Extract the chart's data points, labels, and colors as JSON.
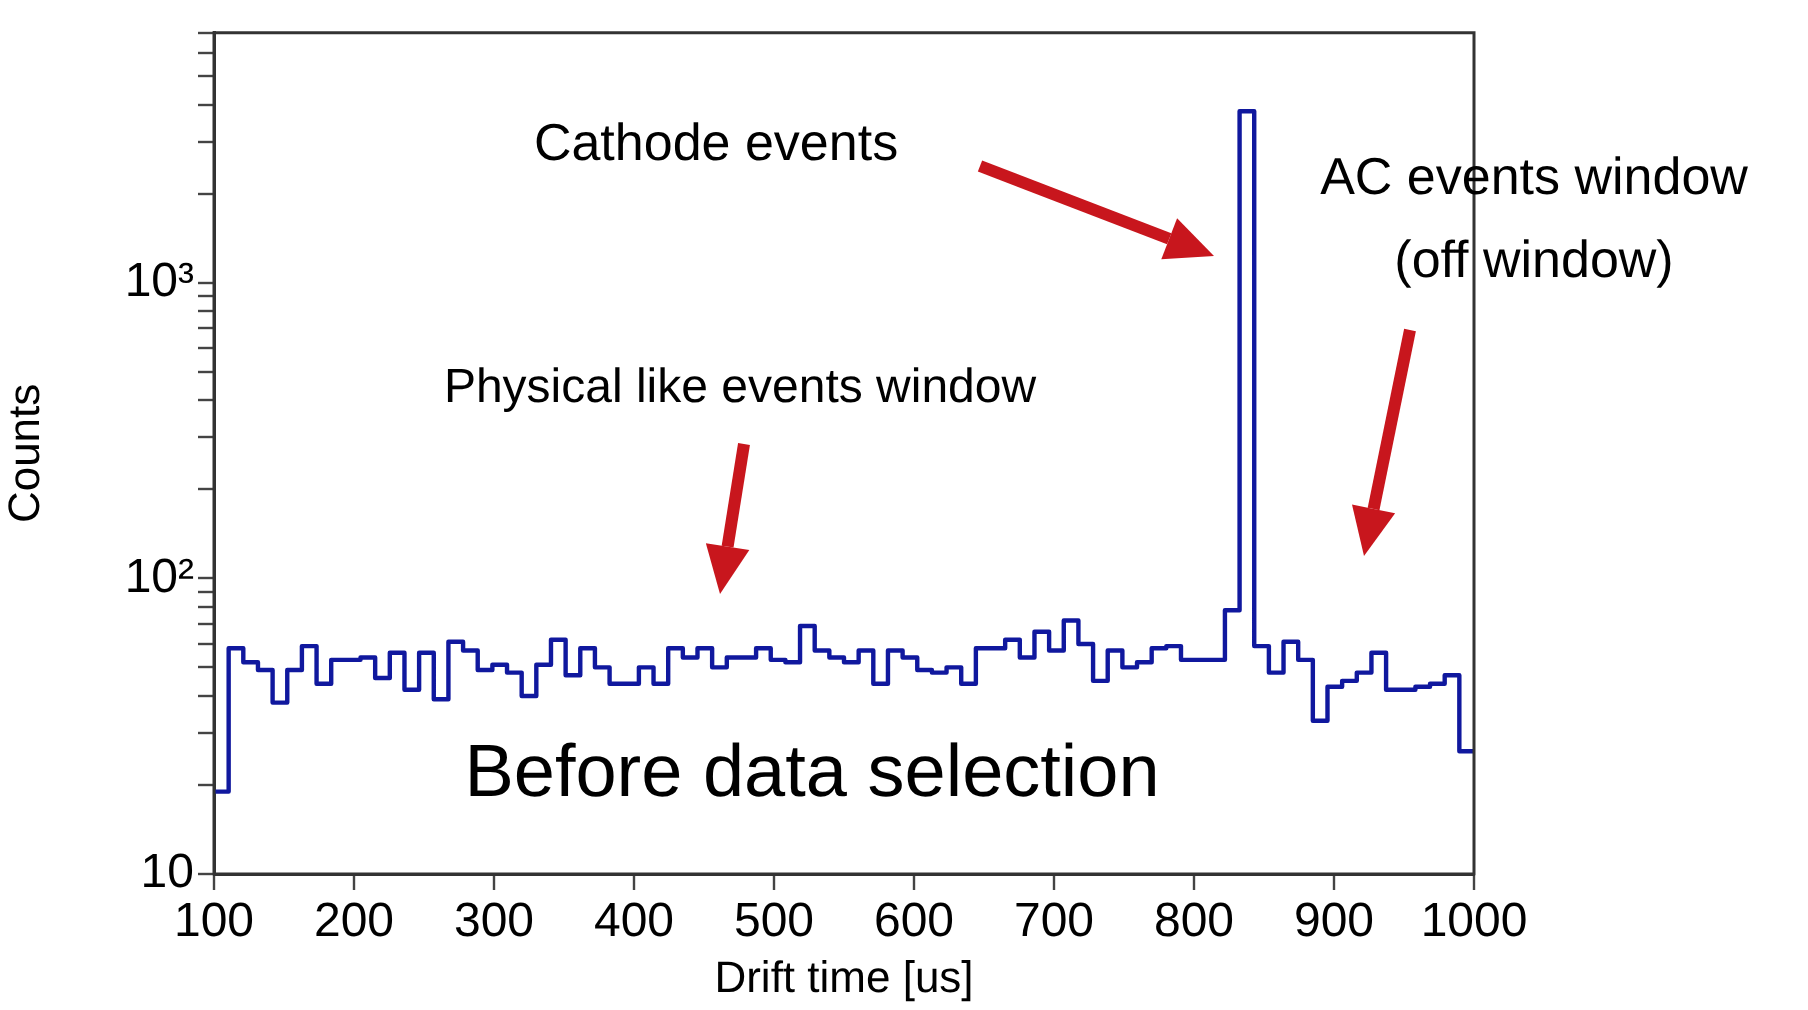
{
  "chart_data": {
    "type": "histogram",
    "xlabel": "Drift time [us]",
    "ylabel": "Counts",
    "bins": [
      100,
      110.47,
      120.93,
      131.4,
      141.86,
      152.33,
      162.79,
      173.26,
      183.72,
      194.19,
      204.65,
      215.12,
      225.58,
      236.05,
      246.51,
      256.98,
      267.44,
      277.91,
      288.37,
      298.84,
      309.3,
      319.77,
      330.23,
      340.7,
      351.16,
      361.63,
      372.09,
      382.56,
      393.02,
      403.49,
      413.95,
      424.42,
      434.88,
      445.35,
      455.81,
      466.28,
      476.74,
      487.21,
      497.67,
      508.14,
      518.6,
      529.07,
      539.53,
      550,
      560.47,
      570.93,
      581.4,
      591.86,
      602.33,
      612.79,
      623.26,
      633.72,
      644.19,
      654.65,
      665.12,
      675.58,
      686.05,
      696.51,
      706.98,
      717.44,
      727.91,
      738.37,
      748.84,
      759.3,
      769.77,
      780.23,
      790.7,
      801.16,
      811.63,
      822.09,
      832.56,
      843.02,
      853.49,
      863.95,
      874.42,
      884.88,
      895.35,
      905.81,
      916.28,
      926.74,
      937.21,
      947.67,
      958.14,
      968.6,
      979.07,
      989.53,
      1000
    ],
    "values": [
      19,
      58,
      52,
      49,
      38,
      49,
      59,
      44,
      53,
      53,
      54,
      46,
      56,
      42,
      56,
      39,
      61,
      57,
      49,
      51,
      48,
      40,
      51,
      62,
      47,
      58,
      50,
      44,
      44,
      50,
      44,
      58,
      54,
      58,
      50,
      54,
      54,
      58,
      53,
      52,
      69,
      57,
      54,
      52,
      57,
      44,
      57,
      54,
      49,
      48,
      50,
      44,
      58,
      58,
      62,
      54,
      66,
      57,
      72,
      60,
      45,
      57,
      50,
      52,
      58,
      59,
      53,
      53,
      53,
      78,
      3800,
      59,
      48,
      61,
      53,
      33,
      43,
      45,
      48,
      56,
      42,
      42,
      43,
      44,
      47,
      26
    ],
    "color": "#10189e",
    "log": "y",
    "xlim": [
      100,
      1000
    ],
    "xticks": [
      100,
      200,
      300,
      400,
      500,
      600,
      700,
      800,
      900,
      1000
    ],
    "ylim": [
      10,
      7000
    ],
    "yticks": [
      {
        "value": 10,
        "label": "10"
      },
      {
        "value": 20,
        "label": null
      },
      {
        "value": 30,
        "label": null
      },
      {
        "value": 40,
        "label": null
      },
      {
        "value": 50,
        "label": null
      },
      {
        "value": 60,
        "label": null
      },
      {
        "value": 70,
        "label": null
      },
      {
        "value": 80,
        "label": null
      },
      {
        "value": 90,
        "label": null
      },
      {
        "value": 100,
        "label": "10²"
      },
      {
        "value": 200,
        "label": null
      },
      {
        "value": 300,
        "label": null
      },
      {
        "value": 400,
        "label": null
      },
      {
        "value": 500,
        "label": null
      },
      {
        "value": 600,
        "label": null
      },
      {
        "value": 700,
        "label": null
      },
      {
        "value": 800,
        "label": null
      },
      {
        "value": 900,
        "label": null
      },
      {
        "value": 1000,
        "label": "10³"
      },
      {
        "value": 2000,
        "label": null
      },
      {
        "value": 3000,
        "label": null
      },
      {
        "value": 4000,
        "label": null
      },
      {
        "value": 5000,
        "label": null
      },
      {
        "value": 6000,
        "label": null
      },
      {
        "value": 7000,
        "label": null
      }
    ],
    "grid": false,
    "legend": false,
    "annotations": [
      "Cathode events",
      "Physical like events window",
      "AC events window\n(off window)",
      "Before data selection"
    ]
  }
}
